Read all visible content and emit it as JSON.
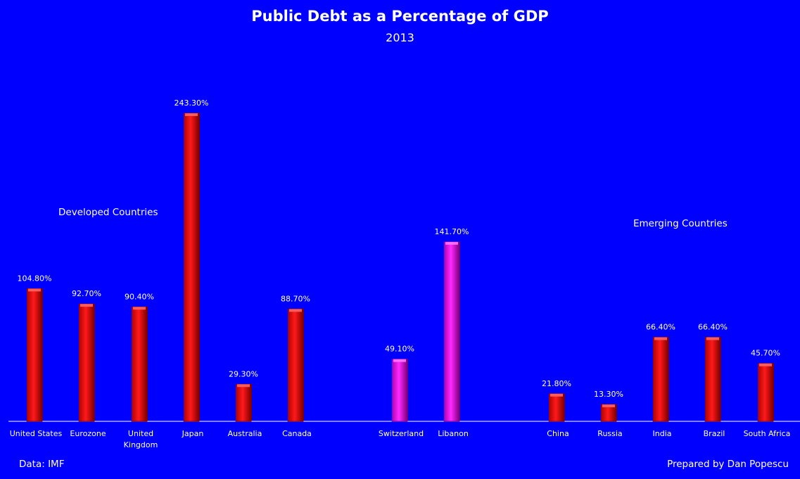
{
  "chart_data": {
    "type": "bar",
    "title": "Public Debt as a Percentage of GDP",
    "subtitle": "2013",
    "categories": [
      "United States",
      "Eurozone",
      "United Kingdom",
      "Japan",
      "Australia",
      "Canada",
      "Switzerland",
      "Libanon",
      "China",
      "Russia",
      "India",
      "Brazil",
      "South Africa"
    ],
    "values": [
      104.8,
      92.7,
      90.4,
      243.3,
      29.3,
      88.7,
      49.1,
      141.7,
      21.8,
      13.3,
      66.4,
      66.4,
      45.7
    ],
    "data_labels": [
      "104.80%",
      "92.70%",
      "90.40%",
      "243.30%",
      "29.30%",
      "88.70%",
      "49.10%",
      "141.70%",
      "21.80%",
      "13.30%",
      "66.40%",
      "66.40%",
      "45.70%"
    ],
    "groups": [
      {
        "label": "Developed Countries",
        "categories": [
          "United States",
          "Eurozone",
          "United Kingdom",
          "Japan",
          "Australia",
          "Canada"
        ]
      },
      {
        "label": "",
        "categories": [
          "Switzerland",
          "Libanon"
        ]
      },
      {
        "label": "Emerging Countries",
        "categories": [
          "China",
          "Russia",
          "India",
          "Brazil",
          "South Africa"
        ]
      }
    ],
    "bar_colors": [
      "#ff0000",
      "#ff0000",
      "#ff0000",
      "#ff0000",
      "#ff0000",
      "#ff0000",
      "#ff00ff",
      "#ff00ff",
      "#ff0000",
      "#ff0000",
      "#ff0000",
      "#ff0000",
      "#ff0000"
    ],
    "ylim": [
      0,
      260
    ],
    "y_axis_visible": false,
    "grid": false,
    "legend": "none",
    "xlabel": "",
    "ylabel": ""
  },
  "footer": {
    "source": "Data: IMF",
    "credit": "Prepared by Dan Popescu"
  },
  "colors": {
    "background": "#0000ff",
    "text": "#ffffff",
    "axis": "#ffffff"
  }
}
